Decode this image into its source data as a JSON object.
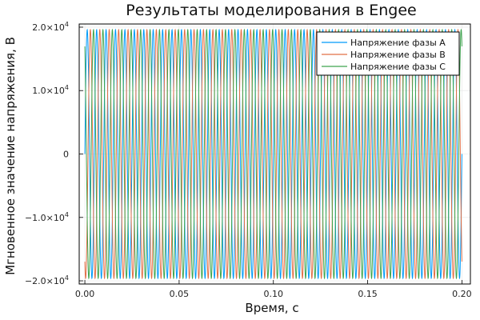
{
  "chart_data": {
    "type": "line",
    "title": "Результаты моделирования в Engee",
    "xlabel": "Время, с",
    "ylabel": "Мгновенное значение напряжения, В",
    "xlim": [
      -0.003,
      0.2045
    ],
    "ylim": [
      -20500,
      20500
    ],
    "x_ticks": [
      0.0,
      0.05,
      0.1,
      0.15,
      0.2
    ],
    "x_tick_labels": [
      "0.00",
      "0.05",
      "0.10",
      "0.15",
      "0.20"
    ],
    "y_ticks": [
      -20000,
      -10000,
      0,
      10000,
      20000
    ],
    "y_tick_labels": [
      {
        "mantissa": "−2.0×10",
        "exp": "4"
      },
      {
        "mantissa": "−1.0×10",
        "exp": "4"
      },
      {
        "mantissa": "0",
        "exp": ""
      },
      {
        "mantissa": "1.0×10",
        "exp": "4"
      },
      {
        "mantissa": "2.0×10",
        "exp": "4"
      }
    ],
    "grid": true,
    "legend_position": "top-right",
    "x_range": [
      0.0,
      0.2
    ],
    "frequency_hz": 200,
    "amplitude": 19600,
    "series": [
      {
        "name": "Напряжение фазы A",
        "color": "#009af9",
        "phase_deg": 0
      },
      {
        "name": "Напряжение фазы B",
        "color": "#e26f46",
        "phase_deg": -120
      },
      {
        "name": "Напряжение фазы C",
        "color": "#3da44d",
        "phase_deg": 120
      }
    ]
  }
}
